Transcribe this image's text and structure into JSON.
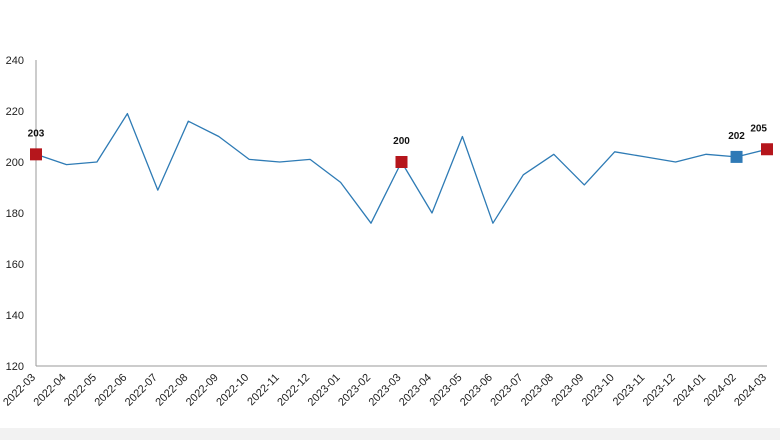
{
  "chart_data": {
    "type": "line",
    "title": "",
    "xlabel": "",
    "ylabel": "",
    "ylim": [
      120,
      240
    ],
    "yticks": [
      120,
      140,
      160,
      180,
      200,
      220,
      240
    ],
    "grid": false,
    "legend": "none",
    "categories": [
      "2022-03",
      "2022-04",
      "2022-05",
      "2022-06",
      "2022-07",
      "2022-08",
      "2022-09",
      "2022-10",
      "2022-11",
      "2022-12",
      "2023-01",
      "2023-02",
      "2023-03",
      "2023-04",
      "2023-05",
      "2023-06",
      "2023-07",
      "2023-08",
      "2023-09",
      "2023-10",
      "2023-11",
      "2023-12",
      "2024-01",
      "2024-02",
      "2024-03"
    ],
    "series": [
      {
        "values": [
          203,
          199,
          200,
          219,
          189,
          216,
          210,
          201,
          200,
          201,
          192,
          176,
          200,
          180,
          210,
          176,
          195,
          203,
          191,
          204,
          202,
          200,
          203,
          202,
          205
        ]
      }
    ],
    "highlights": [
      {
        "category": "2022-03",
        "label": "203",
        "color": "#b5161c"
      },
      {
        "category": "2023-03",
        "label": "200",
        "color": "#b5161c"
      },
      {
        "category": "2024-02",
        "label": "202",
        "color": "#2f7ab6"
      },
      {
        "category": "2024-03",
        "label": "205",
        "color": "#b5161c"
      }
    ],
    "colors": {
      "line": "#2e7bb5",
      "axis": "#9a9a9a",
      "text": "#222222",
      "footer": "#f2f2f2"
    }
  }
}
